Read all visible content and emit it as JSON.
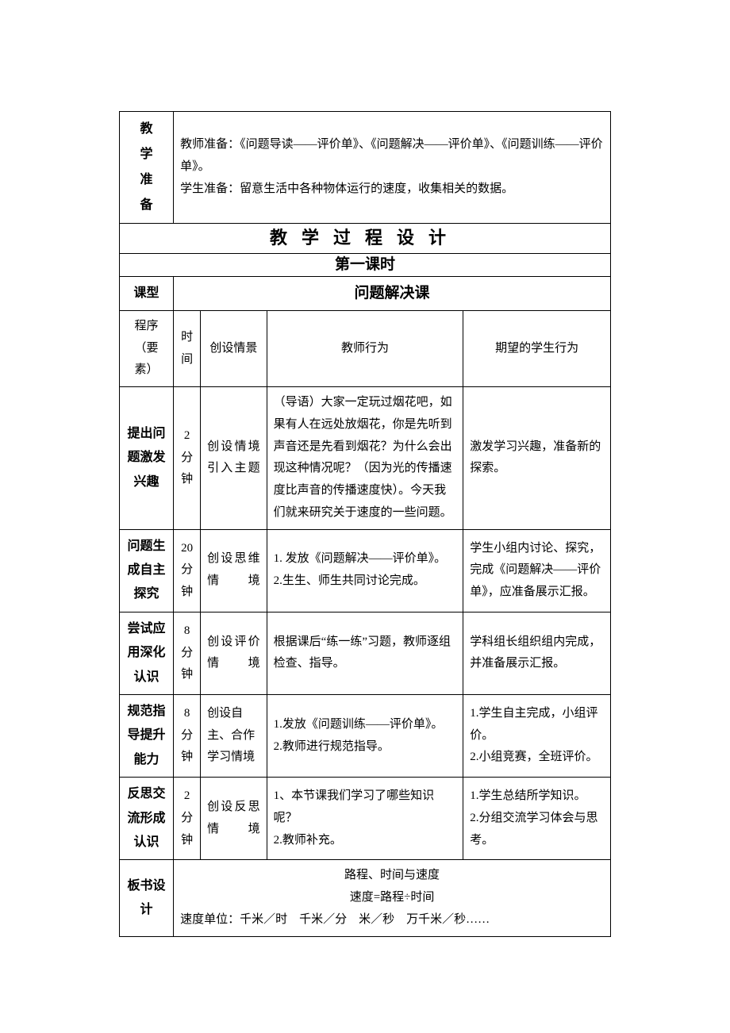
{
  "doc": {
    "prep_label": "教学准备",
    "prep_text_1": "教师准备：《问题导读——评价单》、《问题解决——评价单》、《问题训练——评价单》。",
    "prep_text_2": "学生准备：留意生活中各种物体运行的速度，收集相关的数据。",
    "process_title": "教学过程设计",
    "lesson_no": "第一课时",
    "lesson_type_label": "课型",
    "lesson_type_value": "问题解决课",
    "columns": {
      "c1": "程序（要素）",
      "c2": "时间",
      "c3": "创设情景",
      "c4": "教师行为",
      "c5": "期望的学生行为"
    },
    "rows": {
      "r1": {
        "stage": "提出问题激发兴趣",
        "time": "2分钟",
        "scene": "创设情境引入主题",
        "teacher": "（导语）大家一定玩过烟花吧，如果有人在远处放烟花，你是先听到声音还是先看到烟花？为什么会出现这种情况呢？（因为光的传播速度比声音的传播速度快）。今天我们就来研究关于速度的一些问题。",
        "student": "激发学习兴趣，准备新的探索。"
      },
      "r2": {
        "stage": "问题生成自主探究",
        "time": "20分钟",
        "scene": "创设思维情境",
        "teacher": "1. 发放《问题解决——评价单》。\n2.生生、师生共同讨论完成。",
        "student": "学生小组内讨论、探究，完成《问题解决——评价单》，应准备展示汇报。"
      },
      "r3": {
        "stage": "尝试应用深化认识",
        "time": "8分钟",
        "scene": "创设评价情境",
        "teacher": "根据课后“练一练”习题，教师逐组检查、指导。",
        "student": "学科组长组织组内完成，并准备展示汇报。"
      },
      "r4": {
        "stage": "规范指导提升能力",
        "time": "8分钟",
        "scene": "创设自主、合作学习情境",
        "teacher": "1.发放《问题训练——评价单》。\n2.教师进行规范指导。",
        "student": "1.学生自主完成，小组评价。\n2.小组竞赛，全班评价。"
      },
      "r5": {
        "stage": "反思交流形成认识",
        "time": "2分钟",
        "scene": "创设反思情境",
        "teacher": "1、本节课我们学习了哪些知识呢？\n2.教师补充。",
        "student": "1.学生总结所学知识。\n2.分组交流学习体会与思考。"
      }
    },
    "board": {
      "label": "板书设计",
      "line1": "路程、时间与速度",
      "line2": "速度=路程÷时间",
      "line3": "速度单位：千米／时　千米／分　米／秒　万千米／秒……"
    }
  },
  "style": {
    "border_color": "#000000",
    "text_color": "#000000",
    "background_color": "#ffffff",
    "body_font_size": 15,
    "header_font_size": 16,
    "title_font_size": 22,
    "subtitle_font_size": 19
  }
}
